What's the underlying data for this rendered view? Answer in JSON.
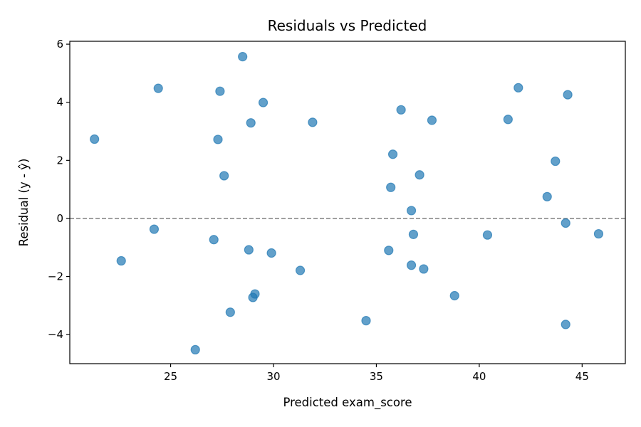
{
  "chart_data": {
    "type": "scatter",
    "title": "Residuals vs Predicted",
    "xlabel": "Predicted exam_score",
    "ylabel": "Residual (y - ŷ)",
    "xlim": [
      20.1,
      47.1
    ],
    "ylim": [
      -5,
      6.1
    ],
    "xticks": [
      25,
      30,
      35,
      40,
      45
    ],
    "yticks": [
      -4,
      -2,
      0,
      2,
      4,
      6
    ],
    "reference_line": {
      "y": 0,
      "style": "dashed",
      "color": "#808080"
    },
    "grid": false,
    "marker_color": "#1f77b4",
    "marker_alpha": 0.7,
    "points": [
      {
        "x": 21.3,
        "y": 2.73
      },
      {
        "x": 22.6,
        "y": -1.46
      },
      {
        "x": 24.2,
        "y": -0.37
      },
      {
        "x": 24.4,
        "y": 4.48
      },
      {
        "x": 26.2,
        "y": -4.52
      },
      {
        "x": 27.1,
        "y": -0.73
      },
      {
        "x": 27.3,
        "y": 2.72
      },
      {
        "x": 27.4,
        "y": 4.38
      },
      {
        "x": 27.6,
        "y": 1.47
      },
      {
        "x": 27.9,
        "y": -3.23
      },
      {
        "x": 28.5,
        "y": 5.57
      },
      {
        "x": 28.8,
        "y": -1.08
      },
      {
        "x": 28.9,
        "y": 3.29
      },
      {
        "x": 29.0,
        "y": -2.72
      },
      {
        "x": 29.1,
        "y": -2.6
      },
      {
        "x": 29.5,
        "y": 3.99
      },
      {
        "x": 29.9,
        "y": -1.19
      },
      {
        "x": 31.3,
        "y": -1.79
      },
      {
        "x": 31.9,
        "y": 3.31
      },
      {
        "x": 34.5,
        "y": -3.52
      },
      {
        "x": 35.6,
        "y": -1.1
      },
      {
        "x": 35.7,
        "y": 1.07
      },
      {
        "x": 35.8,
        "y": 2.21
      },
      {
        "x": 36.2,
        "y": 3.74
      },
      {
        "x": 36.7,
        "y": 0.27
      },
      {
        "x": 36.7,
        "y": -1.61
      },
      {
        "x": 36.8,
        "y": -0.55
      },
      {
        "x": 37.1,
        "y": 1.5
      },
      {
        "x": 37.3,
        "y": -1.74
      },
      {
        "x": 37.7,
        "y": 3.38
      },
      {
        "x": 38.8,
        "y": -2.66
      },
      {
        "x": 40.4,
        "y": -0.57
      },
      {
        "x": 41.4,
        "y": 3.41
      },
      {
        "x": 41.9,
        "y": 4.5
      },
      {
        "x": 43.3,
        "y": 0.75
      },
      {
        "x": 43.7,
        "y": 1.97
      },
      {
        "x": 44.2,
        "y": -0.16
      },
      {
        "x": 44.2,
        "y": -3.65
      },
      {
        "x": 44.3,
        "y": 4.26
      },
      {
        "x": 45.8,
        "y": -0.53
      }
    ]
  }
}
